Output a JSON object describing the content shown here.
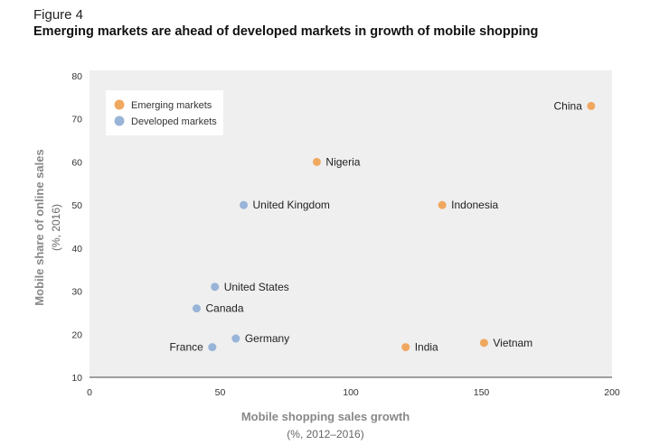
{
  "figure_label": "Figure 4",
  "chart_data": {
    "type": "scatter",
    "title": "Emerging markets are ahead of developed markets in growth of mobile shopping",
    "xlabel": "Mobile shopping sales growth",
    "xlabel_sub": "(%, 2012–2016)",
    "ylabel": "Mobile share of online sales",
    "ylabel_sub": "(%, 2016)",
    "xlim": [
      0,
      200
    ],
    "ylim": [
      10,
      80
    ],
    "xticks": [
      0,
      50,
      100,
      150,
      200
    ],
    "yticks": [
      10,
      20,
      30,
      40,
      50,
      60,
      70,
      80
    ],
    "grid": false,
    "legend_position": "top-left",
    "series": [
      {
        "name": "Emerging markets",
        "color": "#f0a860",
        "points": [
          {
            "label": "China",
            "x": 192,
            "y": 73,
            "label_side": "left"
          },
          {
            "label": "Nigeria",
            "x": 87,
            "y": 60,
            "label_side": "right"
          },
          {
            "label": "Indonesia",
            "x": 135,
            "y": 50,
            "label_side": "right"
          },
          {
            "label": "India",
            "x": 121,
            "y": 17,
            "label_side": "right"
          },
          {
            "label": "Vietnam",
            "x": 151,
            "y": 18,
            "label_side": "right"
          }
        ]
      },
      {
        "name": "Developed markets",
        "color": "#98b4d8",
        "points": [
          {
            "label": "United Kingdom",
            "x": 59,
            "y": 50,
            "label_side": "right"
          },
          {
            "label": "United States",
            "x": 48,
            "y": 31,
            "label_side": "right"
          },
          {
            "label": "Canada",
            "x": 41,
            "y": 26,
            "label_side": "right"
          },
          {
            "label": "Germany",
            "x": 56,
            "y": 19,
            "label_side": "right"
          },
          {
            "label": "France",
            "x": 47,
            "y": 17,
            "label_side": "left"
          }
        ]
      }
    ]
  }
}
